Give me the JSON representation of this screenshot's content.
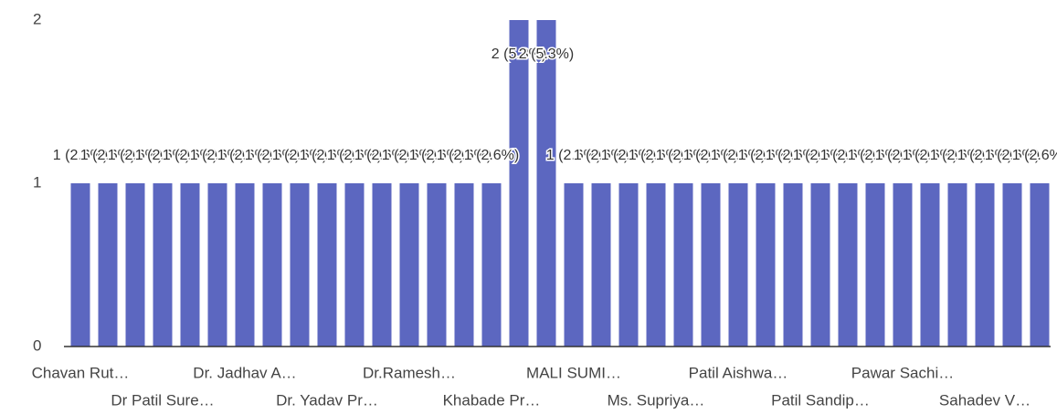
{
  "chart_data": {
    "type": "bar",
    "categories": [
      "Chavan Rut…",
      null,
      null,
      "Dr Patil Sure…",
      null,
      null,
      "Dr. Jadhav A…",
      null,
      null,
      "Dr. Yadav Pr…",
      null,
      null,
      "Dr.Ramesh…",
      null,
      null,
      "Khabade Pr…",
      null,
      null,
      "MALI SUMI…",
      null,
      null,
      "Ms. Supriya…",
      null,
      null,
      "Patil Aishwa…",
      null,
      null,
      "Patil Sandip…",
      null,
      null,
      "Pawar Sachi…",
      null,
      null,
      "Sahadev V…",
      null,
      null
    ],
    "values": [
      1,
      1,
      1,
      1,
      1,
      1,
      1,
      1,
      1,
      1,
      1,
      1,
      1,
      1,
      1,
      1,
      2,
      2,
      1,
      1,
      1,
      1,
      1,
      1,
      1,
      1,
      1,
      1,
      1,
      1,
      1,
      1,
      1,
      1,
      1,
      1
    ],
    "value_labels": [
      "1 (2.6%)",
      "1 (2.6%)",
      "1 (2.6%)",
      "1 (2.6%)",
      "1 (2.6%)",
      "1 (2.6%)",
      "1 (2.6%)",
      "1 (2.6%)",
      "1 (2.6%)",
      "1 (2.6%)",
      "1 (2.6%)",
      "1 (2.6%)",
      "1 (2.6%)",
      "1 (2.6%)",
      "1 (2.6%)",
      "1 (2.6%)",
      "2 (5.3%)",
      "2 (5.3%)",
      "1 (2.6%)",
      "1 (2.6%)",
      "1 (2.6%)",
      "1 (2.6%)",
      "1 (2.6%)",
      "1 (2.6%)",
      "1 (2.6%)",
      "1 (2.6%)",
      "1 (2.6%)",
      "1 (2.6%)",
      "1 (2.6%)",
      "1 (2.6%)",
      "1 (2.6%)",
      "1 (2.6%)",
      "1 (2.6%)",
      "1 (2.6%)",
      "1 (2.6%)",
      "1 (2.6%)"
    ],
    "color": "#5c67c0",
    "ylim": [
      0,
      2
    ],
    "yticks": [
      0,
      1,
      2
    ]
  }
}
